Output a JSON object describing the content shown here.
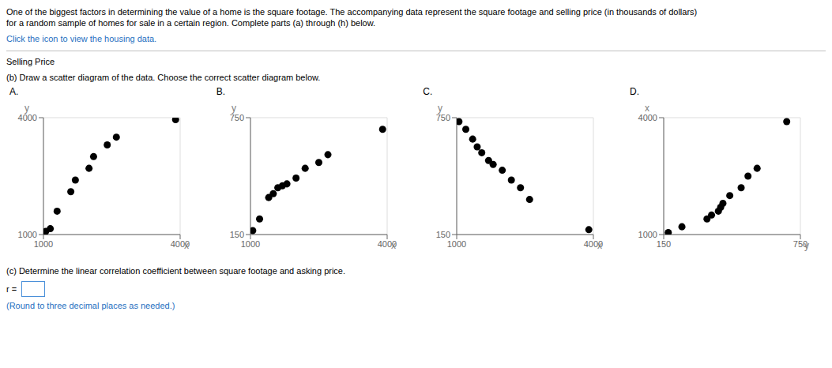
{
  "title": "One of the biggest factors in determining the value of a home is the square footage. The accompanying data represent the square footage and selling price (in thousands of dollars)",
  "subtitle": "for a random sample of homes for sale in a certain region. Complete parts (a) through (h) below.",
  "annotations": [
    "Click the icon to view the housing data.",
    "Selling Price",
    "(b) Draw a scatter diagram of the data. Choose the correct scatter diagram below.",
    "(c) Determine the linear correlation coefficient between square footage and asking price.",
    "r =",
    "(Round to three decimal places as needed.)"
  ],
  "chart_data": [
    {
      "type": "scatter",
      "title": "A.",
      "xlabel": "x",
      "ylabel": "y",
      "x": [
        1050,
        1150,
        1300,
        1600,
        1700,
        2000,
        2100,
        2400,
        2600,
        3900
      ],
      "values": [
        1080,
        1150,
        1600,
        2100,
        2400,
        2700,
        3000,
        3300,
        3500,
        3950
      ],
      "color": "#000000",
      "xlim": [
        1000,
        4000
      ],
      "ylim": [
        1000,
        4000
      ],
      "xticks": [
        1000,
        4000
      ],
      "yticks": [
        1000,
        4000
      ],
      "grid": true
    },
    {
      "type": "scatter",
      "title": "B.",
      "xlabel": "x",
      "ylabel": "y",
      "x": [
        1050,
        1200,
        1400,
        1500,
        1600,
        1700,
        1800,
        2000,
        2200,
        2500,
        2700,
        3900
      ],
      "values": [
        170,
        230,
        340,
        360,
        390,
        400,
        410,
        440,
        490,
        520,
        560,
        690
      ],
      "color": "#000000",
      "xlim": [
        1000,
        4000
      ],
      "ylim": [
        150,
        750
      ],
      "xticks": [
        1000,
        4000
      ],
      "yticks": [
        150,
        750
      ],
      "grid": true
    },
    {
      "type": "scatter",
      "title": "C.",
      "xlabel": "x",
      "ylabel": "y",
      "x": [
        1050,
        1200,
        1350,
        1450,
        1550,
        1700,
        1800,
        2000,
        2200,
        2400,
        2600,
        3900
      ],
      "values": [
        730,
        690,
        640,
        600,
        570,
        530,
        510,
        480,
        430,
        390,
        330,
        175
      ],
      "color": "#000000",
      "xlim": [
        1000,
        4000
      ],
      "ylim": [
        150,
        750
      ],
      "xticks": [
        1000,
        4000
      ],
      "yticks": [
        150,
        750
      ],
      "grid": true
    },
    {
      "type": "scatter",
      "title": "D.",
      "xlabel": "y",
      "ylabel": "x",
      "x": [
        170,
        230,
        340,
        360,
        390,
        400,
        410,
        440,
        490,
        520,
        560,
        690
      ],
      "values": [
        1050,
        1200,
        1400,
        1500,
        1600,
        1700,
        1800,
        2000,
        2200,
        2500,
        2700,
        3900
      ],
      "color": "#000000",
      "xlim": [
        150,
        750
      ],
      "ylim": [
        1000,
        4000
      ],
      "xticks": [
        150,
        750
      ],
      "yticks": [
        1000,
        4000
      ],
      "grid": true
    }
  ]
}
